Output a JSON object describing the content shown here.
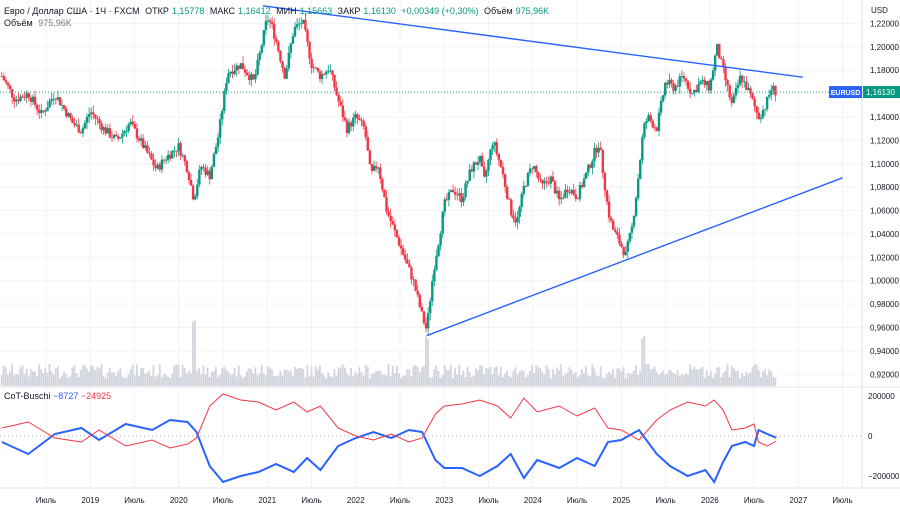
{
  "header": {
    "symbol_name": "Евро / Доллар США · 1Ч · FXCM",
    "open_label": "ОТКР",
    "open_value": "1,15778",
    "high_label": "МАКС",
    "high_value": "1,16412",
    "low_label": "МИН",
    "low_value": "1,15663",
    "close_label": "ЗАКР",
    "close_value": "1,16130",
    "change": "+0,00349 (+0,30%)",
    "volume_label": "Объём",
    "volume_value": "975,96K"
  },
  "volume_legend": {
    "label": "Объём",
    "value": "975,96K"
  },
  "cot_legend": {
    "name": "CoT-Buschi",
    "value_blue": "−8727",
    "value_red": "−24925"
  },
  "price_badge": {
    "symbol": "EURUSD",
    "value": "1,16130"
  },
  "colors": {
    "up": "#089981",
    "down": "#f23645",
    "trendline": "#2962ff",
    "cot_blue": "#2962ff",
    "cot_red": "#f23645",
    "volume": "#d1d4dc",
    "grid": "#f0f3fa"
  },
  "chart_data": [
    {
      "type": "candlestick",
      "title": "Евро / Доллар США · 1Ч · FXCM",
      "ylabel": "USD",
      "ylim": [
        0.91,
        1.24
      ],
      "y_ticks": [
        "1,22000",
        "1,20000",
        "1,18000",
        "1,16000",
        "1,14000",
        "1,12000",
        "1,10000",
        "1,08000",
        "1,06000",
        "1,04000",
        "1,02000",
        "1,00000",
        "0,98000",
        "0,96000",
        "0,94000",
        "0,92000"
      ],
      "y_tick_values": [
        1.22,
        1.2,
        1.18,
        1.16,
        1.14,
        1.12,
        1.1,
        1.08,
        1.06,
        1.04,
        1.02,
        1.0,
        0.98,
        0.96,
        0.94,
        0.92
      ],
      "x_ticks": [
        "Июль",
        "2019",
        "Июль",
        "2020",
        "Июль",
        "2021",
        "Июль",
        "2022",
        "Июль",
        "2023",
        "Июль",
        "2024",
        "Июль",
        "2025",
        "Июль",
        "2026",
        "Июль",
        "2027",
        "Июль"
      ],
      "x_tick_times": [
        2018.5,
        2019.0,
        2019.5,
        2020.0,
        2020.5,
        2021.0,
        2021.5,
        2022.0,
        2022.5,
        2023.0,
        2023.5,
        2024.0,
        2024.5,
        2025.0,
        2025.5,
        2026.0,
        2026.5,
        2027.0,
        2027.5
      ],
      "price_path": [
        [
          2018.0,
          1.175
        ],
        [
          2018.15,
          1.155
        ],
        [
          2018.3,
          1.16
        ],
        [
          2018.45,
          1.142
        ],
        [
          2018.6,
          1.16
        ],
        [
          2018.8,
          1.135
        ],
        [
          2018.9,
          1.128
        ],
        [
          2019.0,
          1.145
        ],
        [
          2019.15,
          1.13
        ],
        [
          2019.3,
          1.12
        ],
        [
          2019.45,
          1.135
        ],
        [
          2019.6,
          1.115
        ],
        [
          2019.75,
          1.095
        ],
        [
          2019.85,
          1.105
        ],
        [
          2020.0,
          1.115
        ],
        [
          2020.1,
          1.095
        ],
        [
          2020.17,
          1.07
        ],
        [
          2020.25,
          1.098
        ],
        [
          2020.35,
          1.09
        ],
        [
          2020.45,
          1.125
        ],
        [
          2020.55,
          1.178
        ],
        [
          2020.7,
          1.185
        ],
        [
          2020.85,
          1.17
        ],
        [
          2021.0,
          1.225
        ],
        [
          2021.05,
          1.218
        ],
        [
          2021.1,
          1.205
        ],
        [
          2021.2,
          1.175
        ],
        [
          2021.3,
          1.215
        ],
        [
          2021.4,
          1.222
        ],
        [
          2021.5,
          1.185
        ],
        [
          2021.6,
          1.175
        ],
        [
          2021.7,
          1.182
        ],
        [
          2021.8,
          1.155
        ],
        [
          2021.9,
          1.13
        ],
        [
          2022.0,
          1.14
        ],
        [
          2022.1,
          1.13
        ],
        [
          2022.17,
          1.09
        ],
        [
          2022.25,
          1.1
        ],
        [
          2022.35,
          1.06
        ],
        [
          2022.45,
          1.04
        ],
        [
          2022.55,
          1.02
        ],
        [
          2022.65,
          1.0
        ],
        [
          2022.75,
          0.97
        ],
        [
          2022.8,
          0.958
        ],
        [
          2022.88,
          1.01
        ],
        [
          2022.95,
          1.04
        ],
        [
          2023.0,
          1.065
        ],
        [
          2023.1,
          1.078
        ],
        [
          2023.2,
          1.07
        ],
        [
          2023.3,
          1.095
        ],
        [
          2023.4,
          1.105
        ],
        [
          2023.45,
          1.085
        ],
        [
          2023.55,
          1.12
        ],
        [
          2023.65,
          1.095
        ],
        [
          2023.75,
          1.06
        ],
        [
          2023.82,
          1.05
        ],
        [
          2023.9,
          1.08
        ],
        [
          2024.0,
          1.1
        ],
        [
          2024.1,
          1.08
        ],
        [
          2024.2,
          1.088
        ],
        [
          2024.3,
          1.068
        ],
        [
          2024.4,
          1.08
        ],
        [
          2024.5,
          1.072
        ],
        [
          2024.6,
          1.09
        ],
        [
          2024.7,
          1.11
        ],
        [
          2024.75,
          1.118
        ],
        [
          2024.8,
          1.09
        ],
        [
          2024.85,
          1.06
        ],
        [
          2024.9,
          1.045
        ],
        [
          2025.0,
          1.03
        ],
        [
          2025.05,
          1.022
        ],
        [
          2025.12,
          1.045
        ],
        [
          2025.18,
          1.08
        ],
        [
          2025.25,
          1.13
        ],
        [
          2025.3,
          1.14
        ],
        [
          2025.4,
          1.13
        ],
        [
          2025.5,
          1.17
        ],
        [
          2025.6,
          1.165
        ],
        [
          2025.7,
          1.175
        ],
        [
          2025.8,
          1.16
        ],
        [
          2025.9,
          1.17
        ],
        [
          2026.0,
          1.165
        ],
        [
          2026.08,
          1.2
        ],
        [
          2026.15,
          1.18
        ],
        [
          2026.25,
          1.15
        ],
        [
          2026.35,
          1.175
        ],
        [
          2026.45,
          1.16
        ],
        [
          2026.55,
          1.14
        ],
        [
          2026.62,
          1.148
        ],
        [
          2026.7,
          1.165
        ],
        [
          2026.75,
          1.161
        ]
      ],
      "trendlines": [
        {
          "from": [
            2020.95,
            1.235
          ],
          "to": [
            2027.05,
            1.174
          ]
        },
        {
          "from": [
            2022.8,
            0.953
          ],
          "to": [
            2027.5,
            1.088
          ]
        }
      ],
      "last_price": 1.1613,
      "volume_spikes": [
        [
          2020.17,
          52
        ],
        [
          2022.8,
          28
        ],
        [
          2025.25,
          36
        ]
      ]
    },
    {
      "type": "line",
      "title": "CoT-Buschi",
      "ylim": [
        -260000,
        240000
      ],
      "y_ticks": [
        "200000",
        "0",
        "−200000"
      ],
      "y_tick_values": [
        200000,
        0,
        -200000
      ],
      "series": [
        {
          "name": "−8727",
          "color": "#2962ff",
          "points": [
            [
              2018.0,
              -30000
            ],
            [
              2018.3,
              -90000
            ],
            [
              2018.6,
              10000
            ],
            [
              2018.9,
              40000
            ],
            [
              2019.1,
              -20000
            ],
            [
              2019.4,
              60000
            ],
            [
              2019.7,
              30000
            ],
            [
              2019.9,
              80000
            ],
            [
              2020.1,
              70000
            ],
            [
              2020.2,
              20000
            ],
            [
              2020.35,
              -150000
            ],
            [
              2020.5,
              -230000
            ],
            [
              2020.7,
              -200000
            ],
            [
              2020.9,
              -180000
            ],
            [
              2021.1,
              -140000
            ],
            [
              2021.3,
              -180000
            ],
            [
              2021.45,
              -110000
            ],
            [
              2021.6,
              -170000
            ],
            [
              2021.8,
              -50000
            ],
            [
              2022.0,
              -10000
            ],
            [
              2022.2,
              20000
            ],
            [
              2022.4,
              -10000
            ],
            [
              2022.6,
              30000
            ],
            [
              2022.75,
              20000
            ],
            [
              2022.9,
              -120000
            ],
            [
              2023.0,
              -160000
            ],
            [
              2023.2,
              -160000
            ],
            [
              2023.4,
              -200000
            ],
            [
              2023.6,
              -150000
            ],
            [
              2023.75,
              -90000
            ],
            [
              2023.9,
              -210000
            ],
            [
              2024.05,
              -120000
            ],
            [
              2024.3,
              -160000
            ],
            [
              2024.5,
              -110000
            ],
            [
              2024.7,
              -150000
            ],
            [
              2024.85,
              -30000
            ],
            [
              2025.0,
              -20000
            ],
            [
              2025.2,
              30000
            ],
            [
              2025.4,
              -90000
            ],
            [
              2025.55,
              -150000
            ],
            [
              2025.75,
              -200000
            ],
            [
              2025.95,
              -170000
            ],
            [
              2026.05,
              -230000
            ],
            [
              2026.15,
              -130000
            ],
            [
              2026.25,
              -50000
            ],
            [
              2026.4,
              -30000
            ],
            [
              2026.5,
              -50000
            ],
            [
              2026.55,
              30000
            ],
            [
              2026.65,
              10000
            ],
            [
              2026.75,
              -8727
            ]
          ]
        },
        {
          "name": "−24925",
          "color": "#f23645",
          "points": [
            [
              2018.0,
              40000
            ],
            [
              2018.3,
              70000
            ],
            [
              2018.6,
              -10000
            ],
            [
              2018.9,
              -30000
            ],
            [
              2019.1,
              30000
            ],
            [
              2019.4,
              -50000
            ],
            [
              2019.7,
              -20000
            ],
            [
              2019.9,
              -60000
            ],
            [
              2020.1,
              -40000
            ],
            [
              2020.2,
              -10000
            ],
            [
              2020.35,
              150000
            ],
            [
              2020.5,
              210000
            ],
            [
              2020.7,
              180000
            ],
            [
              2020.9,
              170000
            ],
            [
              2021.1,
              130000
            ],
            [
              2021.3,
              170000
            ],
            [
              2021.45,
              120000
            ],
            [
              2021.6,
              150000
            ],
            [
              2021.8,
              40000
            ],
            [
              2022.0,
              0
            ],
            [
              2022.2,
              -20000
            ],
            [
              2022.4,
              10000
            ],
            [
              2022.6,
              -30000
            ],
            [
              2022.75,
              -10000
            ],
            [
              2022.9,
              110000
            ],
            [
              2023.0,
              150000
            ],
            [
              2023.2,
              160000
            ],
            [
              2023.4,
              180000
            ],
            [
              2023.6,
              150000
            ],
            [
              2023.75,
              90000
            ],
            [
              2023.9,
              190000
            ],
            [
              2024.05,
              120000
            ],
            [
              2024.3,
              150000
            ],
            [
              2024.5,
              100000
            ],
            [
              2024.7,
              140000
            ],
            [
              2024.85,
              40000
            ],
            [
              2025.0,
              30000
            ],
            [
              2025.2,
              -20000
            ],
            [
              2025.4,
              80000
            ],
            [
              2025.55,
              130000
            ],
            [
              2025.75,
              170000
            ],
            [
              2025.95,
              150000
            ],
            [
              2026.05,
              180000
            ],
            [
              2026.15,
              130000
            ],
            [
              2026.25,
              30000
            ],
            [
              2026.4,
              40000
            ],
            [
              2026.5,
              60000
            ],
            [
              2026.55,
              -30000
            ],
            [
              2026.65,
              -50000
            ],
            [
              2026.75,
              -24925
            ]
          ]
        }
      ]
    }
  ]
}
